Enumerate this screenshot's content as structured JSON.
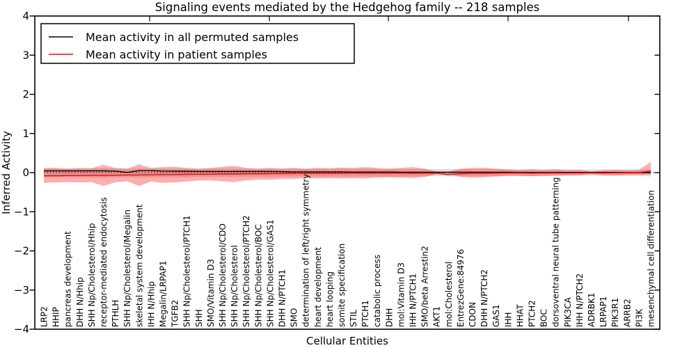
{
  "title": "Signaling events mediated by the Hedgehog family -- 218 samples",
  "legend": [
    {
      "label": "Mean activity in all permuted samples",
      "color": "#000000"
    },
    {
      "label": "Mean activity in patient samples",
      "color": "#ff0000"
    }
  ],
  "colors": {
    "permuted_line": "#000000",
    "patient_line": "#ff0000",
    "patient_band": "#ff0000",
    "permuted_band": "#8a8a8a",
    "frame": "#000000"
  },
  "chart_data": {
    "type": "line",
    "title": "Signaling events mediated by the Hedgehog family -- 218 samples",
    "xlabel": "Cellular Entities",
    "ylabel": "Inferred Activity",
    "ylim": [
      -4,
      4
    ],
    "yticks": [
      -4,
      -3,
      -2,
      -1,
      0,
      1,
      2,
      3,
      4
    ],
    "grid": false,
    "zero_line": "dotted",
    "legend_position": "upper left",
    "categories": [
      "LRP2",
      "HHIP",
      "pancreas development",
      "DHH N/Hhip",
      "SHH Np/Cholesterol/Hhip",
      "receptor-mediated endocytosis",
      "PTHLH",
      "SHH Np/Cholesterol/Megalin",
      "skeletal system development",
      "IHH N/Hhip",
      "Megalin/LRPAP1",
      "TGFB2",
      "SHH Np/Cholesterol/PTCH1",
      "SHH",
      "SMO/Vitamin D3",
      "SHH Np/Cholesterol/CDO",
      "SHH Np/Cholesterol",
      "SHH Np/Cholesterol/PTCH2",
      "SHH Np/Cholesterol/BOC",
      "SHH Np/Cholesterol/GAS1",
      "DHH N/PTCH1",
      "SMO",
      "determination of left/right symmetry",
      "heart development",
      "heart looping",
      "somite specification",
      "STIL",
      "PTCH1",
      "catabolic process",
      "DHH",
      "mol:Vitamin D3",
      "IHH N/PTCH1",
      "SMO/beta Arrestin2",
      "AKT1",
      "mol:Cholesterol",
      "EntrezGene:84976",
      "CDON",
      "DHH N/PTCH2",
      "GAS1",
      "IHH",
      "HHAT",
      "PTCH2",
      "BOC",
      "dorsoventral neural tube patterning",
      "PIK3CA",
      "IHH N/PTCH2",
      "ADRBK1",
      "LRPAP1",
      "PIK3R1",
      "ARRB2",
      "PI3K",
      "mesenchymal cell differentiation"
    ],
    "series": [
      {
        "name": "Mean activity in all permuted samples",
        "color": "#000000",
        "values": [
          0.045,
          0.045,
          0.045,
          0.045,
          0.045,
          0.045,
          0.04,
          0.005,
          0.05,
          0.05,
          0.04,
          0.035,
          0.035,
          0.03,
          0.03,
          0.03,
          0.03,
          0.03,
          0.03,
          0.03,
          0.025,
          0.02,
          0.02,
          0.02,
          0.02,
          0.02,
          0.015,
          0.015,
          0.015,
          0.015,
          0.01,
          0.01,
          0.01,
          0.01,
          0.01,
          0.01,
          0.01,
          0.01,
          0.01,
          0.01,
          0.005,
          0.005,
          0.005,
          0.005,
          0.005,
          0.005,
          0.005,
          0.005,
          0.005,
          0.0,
          0.0,
          0.0
        ]
      },
      {
        "name": "Mean activity in patient samples",
        "color": "#ff0000",
        "values": [
          -0.08,
          -0.08,
          -0.075,
          -0.075,
          -0.07,
          -0.07,
          -0.065,
          -0.06,
          -0.06,
          -0.055,
          -0.05,
          -0.05,
          -0.045,
          -0.04,
          -0.04,
          -0.035,
          -0.035,
          -0.03,
          -0.03,
          -0.025,
          -0.025,
          -0.02,
          -0.02,
          -0.02,
          -0.02,
          -0.02,
          -0.015,
          -0.02,
          -0.015,
          -0.015,
          -0.015,
          -0.02,
          -0.015,
          -0.02,
          -0.05,
          -0.03,
          -0.02,
          -0.02,
          -0.015,
          -0.01,
          -0.01,
          -0.015,
          -0.01,
          -0.01,
          -0.01,
          -0.01,
          -0.005,
          -0.01,
          -0.005,
          -0.005,
          0.0,
          0.04
        ]
      }
    ],
    "bands": [
      {
        "name": "permuted std band",
        "color": "#8a8a8a",
        "opacity": 0.3,
        "upper": [
          0.1,
          0.1,
          0.1,
          0.1,
          0.1,
          0.11,
          0.1,
          0.1,
          0.11,
          0.1,
          0.1,
          0.1,
          0.1,
          0.1,
          0.1,
          0.1,
          0.1,
          0.1,
          0.1,
          0.1,
          0.1,
          0.1,
          0.09,
          0.1,
          0.09,
          0.1,
          0.09,
          0.1,
          0.09,
          0.09,
          0.09,
          0.09,
          0.09,
          0.09,
          0.09,
          0.09,
          0.09,
          0.09,
          0.09,
          0.09,
          0.08,
          0.09,
          0.08,
          0.09,
          0.08,
          0.08,
          0.08,
          0.08,
          0.08,
          0.08,
          0.08,
          0.08
        ],
        "lower": [
          -0.12,
          -0.12,
          -0.12,
          -0.12,
          -0.12,
          -0.13,
          -0.12,
          -0.12,
          -0.13,
          -0.12,
          -0.12,
          -0.12,
          -0.12,
          -0.11,
          -0.11,
          -0.11,
          -0.11,
          -0.11,
          -0.11,
          -0.11,
          -0.1,
          -0.1,
          -0.1,
          -0.1,
          -0.1,
          -0.1,
          -0.1,
          -0.1,
          -0.1,
          -0.1,
          -0.1,
          -0.1,
          -0.09,
          -0.09,
          -0.09,
          -0.09,
          -0.09,
          -0.09,
          -0.09,
          -0.09,
          -0.09,
          -0.09,
          -0.09,
          -0.08,
          -0.08,
          -0.08,
          -0.08,
          -0.08,
          -0.08,
          -0.08,
          -0.08,
          -0.1
        ]
      },
      {
        "name": "patient std band",
        "color": "#ff0000",
        "opacity": 0.32,
        "upper": [
          0.12,
          0.12,
          0.1,
          0.12,
          0.11,
          0.2,
          0.12,
          0.1,
          0.21,
          0.12,
          0.14,
          0.15,
          0.12,
          0.1,
          0.12,
          0.15,
          0.17,
          0.12,
          0.1,
          0.12,
          0.1,
          0.12,
          0.1,
          0.12,
          0.11,
          0.13,
          0.12,
          0.14,
          0.12,
          0.1,
          0.12,
          0.14,
          0.1,
          0.03,
          0.02,
          0.1,
          0.12,
          0.12,
          0.1,
          0.08,
          0.07,
          0.08,
          0.07,
          0.08,
          0.06,
          0.07,
          0.03,
          0.06,
          0.07,
          0.06,
          0.07,
          0.27
        ],
        "lower": [
          -0.26,
          -0.25,
          -0.24,
          -0.25,
          -0.24,
          -0.34,
          -0.25,
          -0.22,
          -0.34,
          -0.23,
          -0.26,
          -0.25,
          -0.23,
          -0.2,
          -0.2,
          -0.22,
          -0.24,
          -0.2,
          -0.18,
          -0.18,
          -0.16,
          -0.16,
          -0.14,
          -0.15,
          -0.14,
          -0.15,
          -0.14,
          -0.15,
          -0.13,
          -0.12,
          -0.13,
          -0.14,
          -0.11,
          -0.04,
          -0.03,
          -0.11,
          -0.13,
          -0.12,
          -0.1,
          -0.08,
          -0.08,
          -0.09,
          -0.08,
          -0.08,
          -0.07,
          -0.07,
          -0.04,
          -0.07,
          -0.07,
          -0.06,
          -0.06,
          -0.05
        ]
      }
    ]
  }
}
